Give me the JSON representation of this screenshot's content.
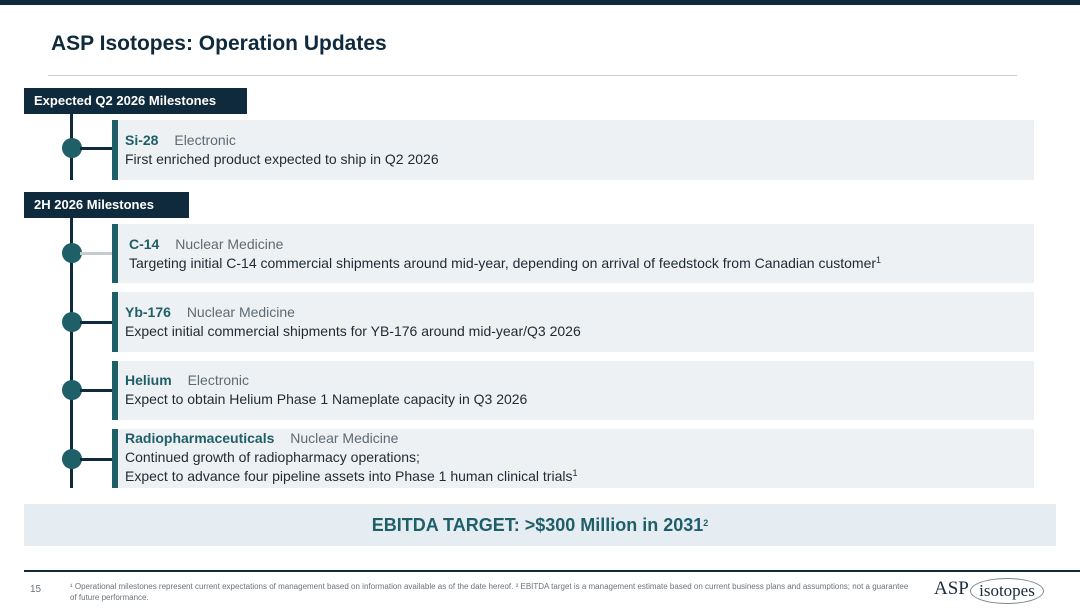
{
  "title": "ASP Isotopes: Operation Updates",
  "sections": [
    {
      "label": "Expected Q2 2026 Milestones",
      "items": [
        {
          "name": "Si-28",
          "category": "Electronic",
          "lines": [
            "First enriched product expected to ship in Q2 2026"
          ]
        }
      ]
    },
    {
      "label": "2H 2026 Milestones",
      "items": [
        {
          "name": "C-14",
          "category": "Nuclear Medicine",
          "lines": [
            "Targeting initial C-14 commercial shipments around mid-year, depending on arrival of feedstock from Canadian customer"
          ],
          "footnote_mark": "1"
        },
        {
          "name": "Yb-176",
          "category": "Nuclear Medicine",
          "lines": [
            "Expect initial commercial shipments for YB-176 around mid-year/Q3 2026"
          ]
        },
        {
          "name": "Helium",
          "category": "Electronic",
          "lines": [
            "Expect to obtain Helium Phase 1 Nameplate capacity in Q3 2026"
          ]
        },
        {
          "name": "Radiopharmaceuticals",
          "category": "Nuclear Medicine",
          "lines": [
            "Continued growth of radiopharmacy operations;",
            "Expect to advance four pipeline assets into Phase 1 human clinical trials"
          ],
          "footnote_mark": "1"
        }
      ]
    }
  ],
  "ebitda_target": {
    "text": "EBITDA TARGET: >$300 Million in 2031",
    "footnote_mark": "2"
  },
  "footer": {
    "page_number": "15",
    "footnotes": "¹ Operational milestones represent current expectations of management based on information available as of the date hereof.  ² EBITDA target is a management estimate based on current business plans and assumptions; not a guarantee of future performance.",
    "logo_left": "ASP",
    "logo_right": "isotopes"
  },
  "colors": {
    "navy": "#0f2a3d",
    "teal": "#1f5f68",
    "card_bg": "#eef1f4"
  }
}
